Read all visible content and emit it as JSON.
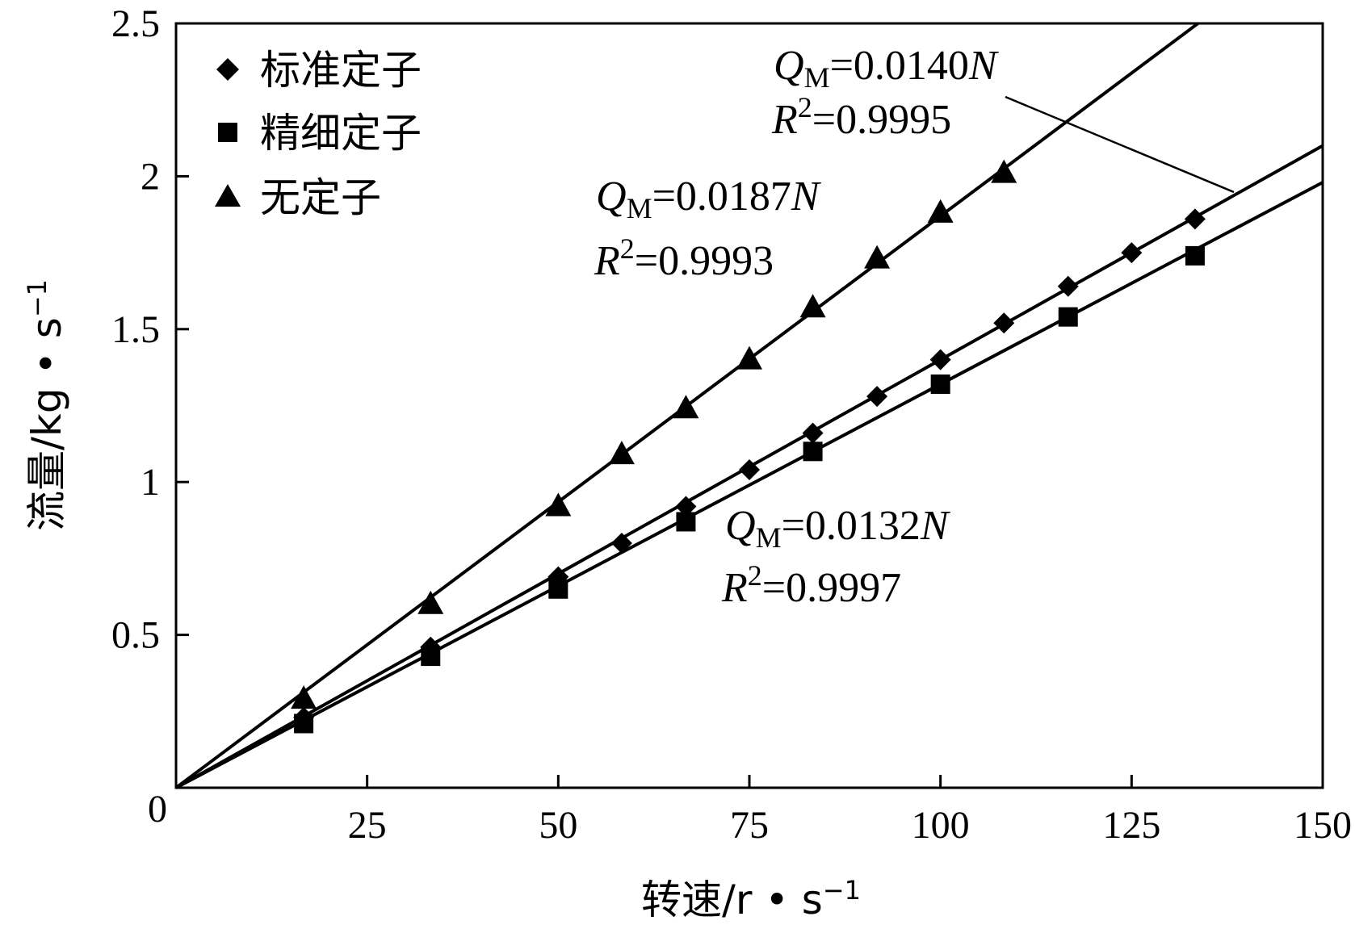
{
  "chart_data": {
    "type": "scatter",
    "xlabel": "转速/r • s",
    "xlabel_sup": "−1",
    "ylabel": "流量/kg • s",
    "ylabel_sup": "−1",
    "xlim": [
      0,
      150
    ],
    "ylim": [
      0,
      2.5
    ],
    "xticks": [
      25,
      50,
      75,
      100,
      125,
      150
    ],
    "yticks": [
      0.5,
      1,
      1.5,
      2,
      2.5
    ],
    "origin_label": "0",
    "grid": false,
    "legend_position": "top-left",
    "series": [
      {
        "name": "标准定子",
        "marker": "diamond",
        "x": [
          16.7,
          33.3,
          50,
          58.3,
          66.7,
          75,
          83.3,
          91.7,
          100,
          108.3,
          116.7,
          125,
          133.3
        ],
        "y": [
          0.23,
          0.46,
          0.69,
          0.8,
          0.92,
          1.04,
          1.16,
          1.28,
          1.4,
          1.52,
          1.64,
          1.75,
          1.86
        ],
        "fit_slope": 0.014,
        "fit_x_end": 150,
        "equation": {
          "q": "Q",
          "q_sub": "M",
          "rhs": "=0.0140",
          "var": "N",
          "r": "R",
          "r_sup": "2",
          "r_value": "=0.9995"
        }
      },
      {
        "name": "精细定子",
        "marker": "square",
        "x": [
          16.7,
          33.3,
          50,
          66.7,
          83.3,
          100,
          116.7,
          133.3
        ],
        "y": [
          0.21,
          0.43,
          0.65,
          0.87,
          1.1,
          1.32,
          1.54,
          1.74
        ],
        "fit_slope": 0.0132,
        "fit_x_end": 150,
        "equation": {
          "q": "Q",
          "q_sub": "M",
          "rhs": "=0.0132",
          "var": "N",
          "r": "R",
          "r_sup": "2",
          "r_value": "=0.9997"
        }
      },
      {
        "name": "无定子",
        "marker": "triangle",
        "x": [
          16.7,
          33.3,
          50,
          58.3,
          66.7,
          75,
          83.3,
          91.7,
          100,
          108.3
        ],
        "y": [
          0.29,
          0.6,
          0.92,
          1.09,
          1.24,
          1.4,
          1.57,
          1.73,
          1.88,
          2.01
        ],
        "fit_slope": 0.0187,
        "fit_x_end": 133.7,
        "equation": {
          "q": "Q",
          "q_sub": "M",
          "rhs": "=0.0187",
          "var": "N",
          "r": "R",
          "r_sup": "2",
          "r_value": "=0.9993"
        }
      }
    ]
  }
}
